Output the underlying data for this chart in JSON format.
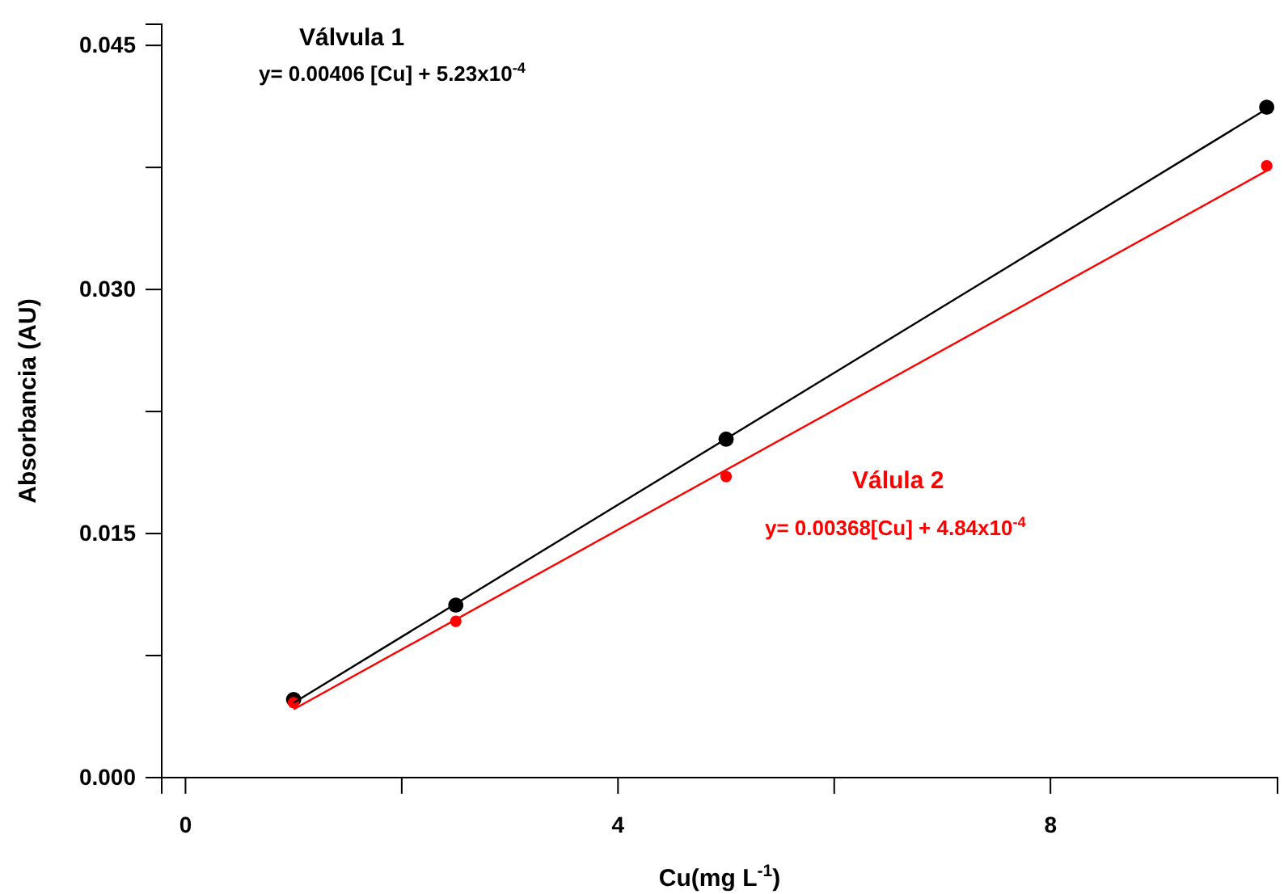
{
  "chart_data": {
    "type": "scatter",
    "xlabel": "Cu(mg L$^{-1}$)",
    "ylabel": "Absorbancia (AU)",
    "xlim": [
      -0.22,
      10.1
    ],
    "ylim": [
      0,
      0.0463
    ],
    "xticks": [
      0,
      {
        "value": 2,
        "label": null
      },
      4,
      {
        "value": 6,
        "label": null
      },
      8
    ],
    "yticks": [
      {
        "value": 0,
        "label": "0.000"
      },
      {
        "value": 0.0075,
        "label": null
      },
      {
        "value": 0.015,
        "label": "0.015"
      },
      {
        "value": 0.0225,
        "label": null
      },
      {
        "value": 0.03,
        "label": "0.030"
      },
      {
        "value": 0.0375,
        "label": null
      },
      {
        "value": 0.045,
        "label": "0.045"
      }
    ],
    "grid": false,
    "legend": false,
    "series": [
      {
        "name": "Válvula 1",
        "marker": "circle",
        "color": "#000000",
        "x": [
          1,
          2.5,
          5,
          10
        ],
        "values": [
          0.0048,
          0.0106,
          0.0208,
          0.0412
        ]
      },
      {
        "name": "Válula 2",
        "marker": "circle",
        "color": "#ff0000",
        "x": [
          1,
          2.5,
          5,
          10
        ],
        "values": [
          0.0046,
          0.0096,
          0.0185,
          0.0376
        ]
      },
      {
        "type": "line",
        "color": "#000000",
        "x": [
          1,
          10
        ],
        "values": [
          0.0046,
          0.0411
        ]
      },
      {
        "type": "line",
        "color": "#ff0000",
        "x": [
          1,
          10
        ],
        "values": [
          0.0042,
          0.0373
        ]
      }
    ],
    "annotations": [
      "y= 0.00406 [Cu] + 5.23x10$^{-4}$",
      "y= 0.00368[Cu] + 4.84x10$^{-4}$"
    ]
  }
}
